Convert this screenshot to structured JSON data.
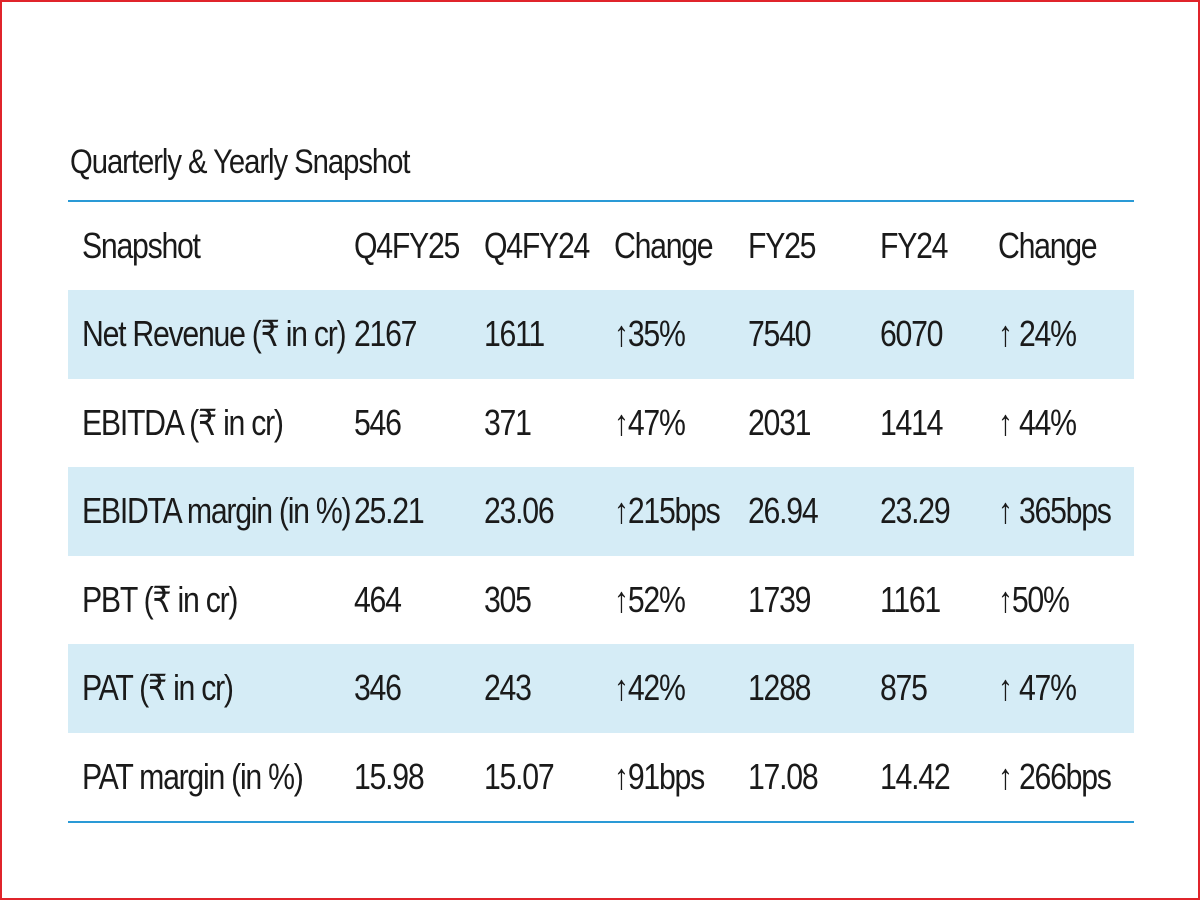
{
  "title": "Quarterly & Yearly Snapshot",
  "table": {
    "headers": [
      "Snapshot",
      "Q4FY25",
      "Q4FY24",
      "Change",
      "FY25",
      "FY24",
      "Change"
    ],
    "rows": [
      [
        "Net Revenue (₹ in cr)",
        "2167",
        "1611",
        "↑35%",
        "7540",
        "6070",
        "↑ 24%"
      ],
      [
        "EBITDA (₹ in cr)",
        "546",
        "371",
        "↑47%",
        "2031",
        "1414",
        "↑ 44%"
      ],
      [
        "EBIDTA margin (in %)",
        "25.21",
        "23.06",
        "↑215bps",
        "26.94",
        "23.29",
        "↑ 365bps"
      ],
      [
        "PBT (₹ in cr)",
        "464",
        "305",
        "↑52%",
        "1739",
        "1161",
        "↑50%"
      ],
      [
        "PAT (₹ in cr)",
        "346",
        "243",
        "↑42%",
        "1288",
        "875",
        "↑ 47%"
      ],
      [
        "PAT margin (in %)",
        "15.98",
        "15.07",
        "↑91bps",
        "17.08",
        "14.42",
        "↑ 266bps"
      ]
    ]
  },
  "colors": {
    "rule": "#2a9ad6",
    "row_shade": "#d5ecf6",
    "frame_border": "#e0242b",
    "text": "#1a1a1a"
  }
}
